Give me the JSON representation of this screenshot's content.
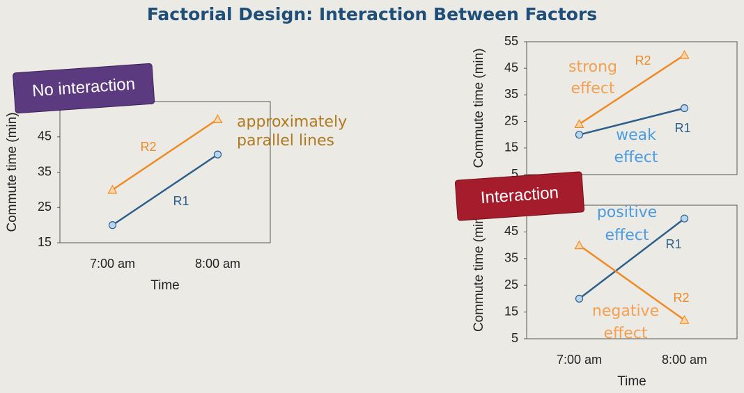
{
  "slide": {
    "title": "Factorial Design: Interaction Between Factors",
    "badges": [
      "No interaction",
      "Interaction"
    ]
  },
  "chart_data": [
    {
      "type": "line",
      "xlabel": "Time",
      "ylabel": "Commute time (min)",
      "categories": [
        "7:00 am",
        "8:00 am"
      ],
      "series": [
        {
          "name": "R1",
          "color": "#2e5f8a",
          "marker": "circle",
          "values": [
            20,
            40
          ]
        },
        {
          "name": "R2",
          "color": "#f08a24",
          "marker": "triangle",
          "values": [
            30,
            50
          ]
        }
      ],
      "ylim": [
        15,
        55
      ],
      "yticks": [
        15,
        25,
        35,
        45
      ],
      "grid": false,
      "annotations": [
        {
          "lines": [
            "approximately",
            "parallel lines"
          ],
          "color": "#b07a20"
        }
      ]
    },
    {
      "type": "line",
      "ylabel": "Commute time (min)",
      "categories": [
        null,
        null
      ],
      "series": [
        {
          "name": "R1",
          "color": "#2e5f8a",
          "marker": "circle",
          "values": [
            20,
            30
          ]
        },
        {
          "name": "R2",
          "color": "#f08a24",
          "marker": "triangle",
          "values": [
            24,
            50
          ]
        }
      ],
      "ylim": [
        5,
        55
      ],
      "yticks": [
        5,
        15,
        25,
        35,
        45,
        55
      ],
      "grid": false,
      "annotations": [
        {
          "lines": [
            "strong",
            "effect"
          ],
          "color": "#f4a050"
        },
        {
          "lines": [
            "weak",
            "effect"
          ],
          "color": "#4a9be0"
        }
      ]
    },
    {
      "type": "line",
      "xlabel": "Time",
      "ylabel": "Commute time (min)",
      "categories": [
        "7:00 am",
        "8:00 am"
      ],
      "series": [
        {
          "name": "R1",
          "color": "#2e5f8a",
          "marker": "circle",
          "values": [
            20,
            50
          ]
        },
        {
          "name": "R2",
          "color": "#f08a24",
          "marker": "triangle",
          "values": [
            40,
            12
          ]
        }
      ],
      "ylim": [
        5,
        55
      ],
      "yticks": [
        5,
        15,
        25,
        35,
        45
      ],
      "grid": false,
      "annotations": [
        {
          "lines": [
            "positive",
            "effect"
          ],
          "color": "#4a9be0"
        },
        {
          "lines": [
            "negative",
            "effect"
          ],
          "color": "#f4a050"
        }
      ]
    }
  ]
}
